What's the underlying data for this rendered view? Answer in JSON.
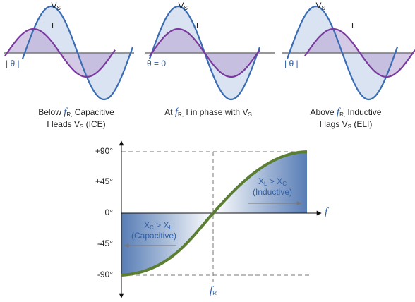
{
  "panels": [
    {
      "vs_label": [
        "V",
        "S"
      ],
      "i_label": "I",
      "theta_label": "| θ |",
      "caption_line1": [
        "Below ",
        "f",
        "R,",
        " Capacitive"
      ],
      "caption_line2": [
        "I leads V",
        "S",
        " (ICE)"
      ]
    },
    {
      "vs_label": [
        "V",
        "S"
      ],
      "i_label": "I",
      "theta_label": "θ = 0",
      "caption_line1": [
        "At ",
        "f",
        "R,",
        " I in phase with V",
        "S"
      ]
    },
    {
      "vs_label": [
        "V",
        "S"
      ],
      "i_label": "I",
      "theta_label": "| θ |",
      "caption_line1": [
        "Above ",
        "f",
        "R,",
        " Inductive"
      ],
      "caption_line2": [
        "I lags V",
        "S",
        " (ELI)"
      ]
    }
  ],
  "graph": {
    "y_labels": [
      "+90°",
      "+45°",
      "0°",
      "-45°",
      "-90°"
    ],
    "x_axis_label": "f",
    "fr_label": [
      "f",
      "R"
    ],
    "upper_region": [
      "X",
      "L",
      " > X",
      "C"
    ],
    "upper_note": "(Inductive)",
    "lower_region": [
      "X",
      "C",
      " > X",
      "L"
    ],
    "lower_note": "(Capacitive)"
  }
}
